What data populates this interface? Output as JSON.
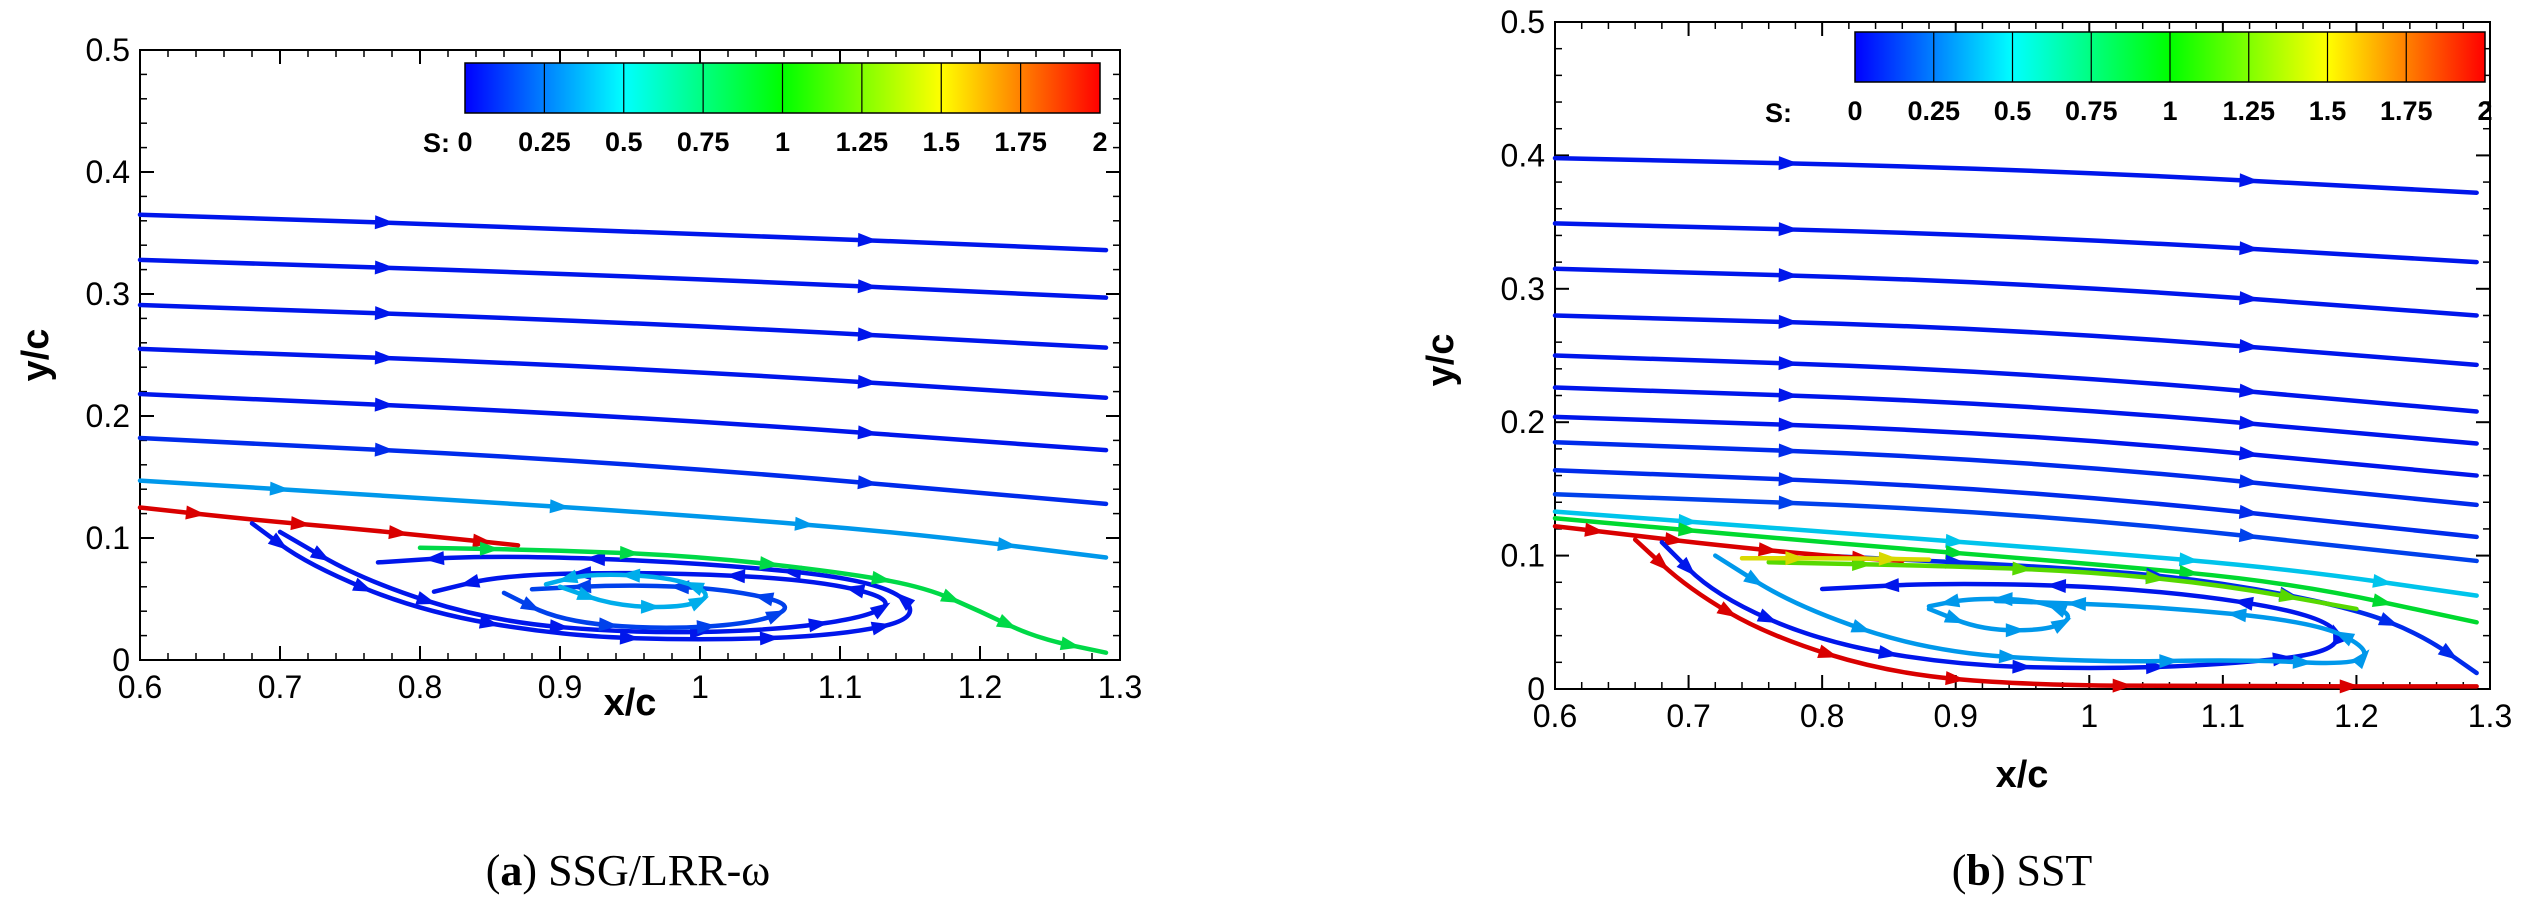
{
  "chart_data": [
    {
      "type": "line",
      "subtype": "streamlines",
      "caption_letter": "a",
      "caption_text": " SSG/LRR-ω",
      "xlabel": "x/c",
      "ylabel": "y/c",
      "xlim": [
        0.6,
        1.3
      ],
      "ylim": [
        0,
        0.5
      ],
      "xticks": [
        0.6,
        0.7,
        0.8,
        0.9,
        1,
        1.1,
        1.2,
        1.3
      ],
      "yticks": [
        0,
        0.1,
        0.2,
        0.3,
        0.4,
        0.5
      ],
      "colorbar": {
        "label": "S:",
        "ticks": [
          "0",
          "0.25",
          "0.5",
          "0.75",
          "1",
          "1.25",
          "1.5",
          "1.75",
          "2"
        ],
        "range": [
          0,
          2
        ]
      },
      "series": [
        {
          "s": 0.05,
          "points": [
            [
              0.6,
              0.365
            ],
            [
              0.95,
              0.352
            ],
            [
              1.29,
              0.336
            ]
          ]
        },
        {
          "s": 0.05,
          "points": [
            [
              0.6,
              0.328
            ],
            [
              0.95,
              0.315
            ],
            [
              1.29,
              0.297
            ]
          ]
        },
        {
          "s": 0.05,
          "points": [
            [
              0.6,
              0.291
            ],
            [
              0.95,
              0.277
            ],
            [
              1.29,
              0.256
            ]
          ]
        },
        {
          "s": 0.05,
          "points": [
            [
              0.6,
              0.255
            ],
            [
              0.95,
              0.24
            ],
            [
              1.29,
              0.215
            ]
          ]
        },
        {
          "s": 0.05,
          "points": [
            [
              0.6,
              0.218
            ],
            [
              0.95,
              0.2
            ],
            [
              1.29,
              0.172
            ]
          ]
        },
        {
          "s": 0.1,
          "points": [
            [
              0.6,
              0.182
            ],
            [
              0.95,
              0.162
            ],
            [
              1.29,
              0.128
            ]
          ]
        },
        {
          "s": 0.35,
          "points": [
            [
              0.6,
              0.147
            ],
            [
              0.8,
              0.133
            ],
            [
              1.0,
              0.118
            ],
            [
              1.15,
              0.104
            ],
            [
              1.29,
              0.084
            ]
          ]
        },
        {
          "s": 2.0,
          "points": [
            [
              0.6,
              0.125
            ],
            [
              0.68,
              0.115
            ],
            [
              0.75,
              0.108
            ],
            [
              0.82,
              0.1
            ],
            [
              0.87,
              0.094
            ]
          ]
        },
        {
          "s": 0.05,
          "points": [
            [
              0.68,
              0.112
            ],
            [
              0.72,
              0.078
            ],
            [
              0.8,
              0.04
            ],
            [
              0.9,
              0.02
            ],
            [
              1.0,
              0.016
            ],
            [
              1.1,
              0.02
            ],
            [
              1.16,
              0.035
            ],
            [
              1.13,
              0.065
            ],
            [
              1.0,
              0.08
            ],
            [
              0.85,
              0.086
            ],
            [
              0.77,
              0.08
            ]
          ]
        },
        {
          "s": 0.05,
          "points": [
            [
              0.7,
              0.105
            ],
            [
              0.76,
              0.065
            ],
            [
              0.85,
              0.032
            ],
            [
              0.95,
              0.022
            ],
            [
              1.05,
              0.024
            ],
            [
              1.12,
              0.035
            ],
            [
              1.14,
              0.05
            ],
            [
              1.08,
              0.066
            ],
            [
              0.97,
              0.072
            ],
            [
              0.86,
              0.07
            ],
            [
              0.81,
              0.056
            ]
          ]
        },
        {
          "s": 0.15,
          "points": [
            [
              0.86,
              0.055
            ],
            [
              0.9,
              0.032
            ],
            [
              0.97,
              0.025
            ],
            [
              1.04,
              0.03
            ],
            [
              1.07,
              0.045
            ],
            [
              1.02,
              0.058
            ],
            [
              0.95,
              0.062
            ],
            [
              0.88,
              0.058
            ]
          ]
        },
        {
          "s": 0.4,
          "points": [
            [
              0.9,
              0.06
            ],
            [
              0.94,
              0.044
            ],
            [
              0.99,
              0.043
            ],
            [
              1.01,
              0.054
            ],
            [
              0.98,
              0.068
            ],
            [
              0.92,
              0.071
            ],
            [
              0.89,
              0.062
            ]
          ]
        },
        {
          "s": 0.85,
          "points": [
            [
              0.8,
              0.092
            ],
            [
              0.9,
              0.09
            ],
            [
              1.0,
              0.085
            ],
            [
              1.1,
              0.072
            ],
            [
              1.16,
              0.06
            ],
            [
              1.2,
              0.04
            ],
            [
              1.24,
              0.018
            ],
            [
              1.29,
              0.006
            ]
          ]
        }
      ]
    },
    {
      "type": "line",
      "subtype": "streamlines",
      "caption_letter": "b",
      "caption_text": " SST",
      "xlabel": "x/c",
      "ylabel": "y/c",
      "xlim": [
        0.6,
        1.3
      ],
      "ylim": [
        0,
        0.5
      ],
      "xticks": [
        0.6,
        0.7,
        0.8,
        0.9,
        1,
        1.1,
        1.2,
        1.3
      ],
      "yticks": [
        0,
        0.1,
        0.2,
        0.3,
        0.4,
        0.5
      ],
      "colorbar": {
        "label": "S:",
        "ticks": [
          "0",
          "0.25",
          "0.5",
          "0.75",
          "1",
          "1.25",
          "1.5",
          "1.75",
          "2"
        ],
        "range": [
          0,
          2
        ]
      },
      "series": [
        {
          "s": 0.05,
          "points": [
            [
              0.6,
              0.398
            ],
            [
              0.95,
              0.39
            ],
            [
              1.29,
              0.372
            ]
          ]
        },
        {
          "s": 0.05,
          "points": [
            [
              0.6,
              0.349
            ],
            [
              0.95,
              0.34
            ],
            [
              1.29,
              0.32
            ]
          ]
        },
        {
          "s": 0.05,
          "points": [
            [
              0.6,
              0.315
            ],
            [
              0.95,
              0.305
            ],
            [
              1.29,
              0.28
            ]
          ]
        },
        {
          "s": 0.05,
          "points": [
            [
              0.6,
              0.28
            ],
            [
              0.95,
              0.27
            ],
            [
              1.29,
              0.243
            ]
          ]
        },
        {
          "s": 0.05,
          "points": [
            [
              0.6,
              0.25
            ],
            [
              0.95,
              0.238
            ],
            [
              1.29,
              0.208
            ]
          ]
        },
        {
          "s": 0.05,
          "points": [
            [
              0.6,
              0.226
            ],
            [
              0.95,
              0.214
            ],
            [
              1.29,
              0.184
            ]
          ]
        },
        {
          "s": 0.05,
          "points": [
            [
              0.6,
              0.204
            ],
            [
              0.95,
              0.192
            ],
            [
              1.29,
              0.16
            ]
          ]
        },
        {
          "s": 0.1,
          "points": [
            [
              0.6,
              0.185
            ],
            [
              0.95,
              0.172
            ],
            [
              1.29,
              0.138
            ]
          ]
        },
        {
          "s": 0.1,
          "points": [
            [
              0.6,
              0.164
            ],
            [
              0.95,
              0.15
            ],
            [
              1.29,
              0.114
            ]
          ]
        },
        {
          "s": 0.15,
          "points": [
            [
              0.6,
              0.146
            ],
            [
              0.95,
              0.133
            ],
            [
              1.29,
              0.096
            ]
          ]
        },
        {
          "s": 0.45,
          "points": [
            [
              0.6,
              0.133
            ],
            [
              0.8,
              0.118
            ],
            [
              1.0,
              0.103
            ],
            [
              1.15,
              0.09
            ],
            [
              1.29,
              0.07
            ]
          ]
        },
        {
          "s": 0.9,
          "points": [
            [
              0.6,
              0.128
            ],
            [
              0.8,
              0.11
            ],
            [
              1.0,
              0.094
            ],
            [
              1.15,
              0.08
            ],
            [
              1.29,
              0.05
            ]
          ]
        },
        {
          "s": 0.1,
          "points": [
            [
              0.8,
              0.1
            ],
            [
              1.0,
              0.09
            ],
            [
              1.1,
              0.08
            ],
            [
              1.2,
              0.06
            ],
            [
              1.25,
              0.04
            ],
            [
              1.29,
              0.012
            ]
          ]
        },
        {
          "s": 2.0,
          "points": [
            [
              0.6,
              0.122
            ],
            [
              0.66,
              0.115
            ],
            [
              0.72,
              0.108
            ],
            [
              0.8,
              0.1
            ],
            [
              0.86,
              0.096
            ]
          ]
        },
        {
          "s": 2.0,
          "points": [
            [
              0.66,
              0.112
            ],
            [
              0.7,
              0.075
            ],
            [
              0.76,
              0.04
            ],
            [
              0.85,
              0.012
            ],
            [
              0.95,
              0.003
            ],
            [
              1.1,
              0.002
            ],
            [
              1.29,
              0.002
            ]
          ]
        },
        {
          "s": 0.05,
          "points": [
            [
              0.68,
              0.11
            ],
            [
              0.72,
              0.07
            ],
            [
              0.8,
              0.035
            ],
            [
              0.9,
              0.018
            ],
            [
              1.0,
              0.015
            ],
            [
              1.1,
              0.018
            ],
            [
              1.19,
              0.028
            ],
            [
              1.18,
              0.055
            ],
            [
              1.05,
              0.075
            ],
            [
              0.9,
              0.08
            ],
            [
              0.8,
              0.075
            ]
          ]
        },
        {
          "s": 0.35,
          "points": [
            [
              0.72,
              0.1
            ],
            [
              0.78,
              0.062
            ],
            [
              0.88,
              0.028
            ],
            [
              1.0,
              0.02
            ],
            [
              1.12,
              0.022
            ],
            [
              1.2,
              0.018
            ],
            [
              1.21,
              0.03
            ],
            [
              1.17,
              0.05
            ],
            [
              1.05,
              0.062
            ],
            [
              0.93,
              0.066
            ]
          ]
        },
        {
          "s": 0.35,
          "points": [
            [
              0.88,
              0.06
            ],
            [
              0.92,
              0.044
            ],
            [
              0.97,
              0.044
            ],
            [
              0.99,
              0.055
            ],
            [
              0.96,
              0.067
            ],
            [
              0.91,
              0.068
            ],
            [
              0.88,
              0.062
            ]
          ]
        },
        {
          "s": 1.2,
          "points": [
            [
              0.76,
              0.095
            ],
            [
              0.9,
              0.092
            ],
            [
              1.0,
              0.088
            ],
            [
              1.1,
              0.078
            ],
            [
              1.2,
              0.06
            ]
          ]
        },
        {
          "s": 1.5,
          "points": [
            [
              0.74,
              0.098
            ],
            [
              0.82,
              0.098
            ],
            [
              0.88,
              0.097
            ]
          ]
        }
      ]
    }
  ]
}
